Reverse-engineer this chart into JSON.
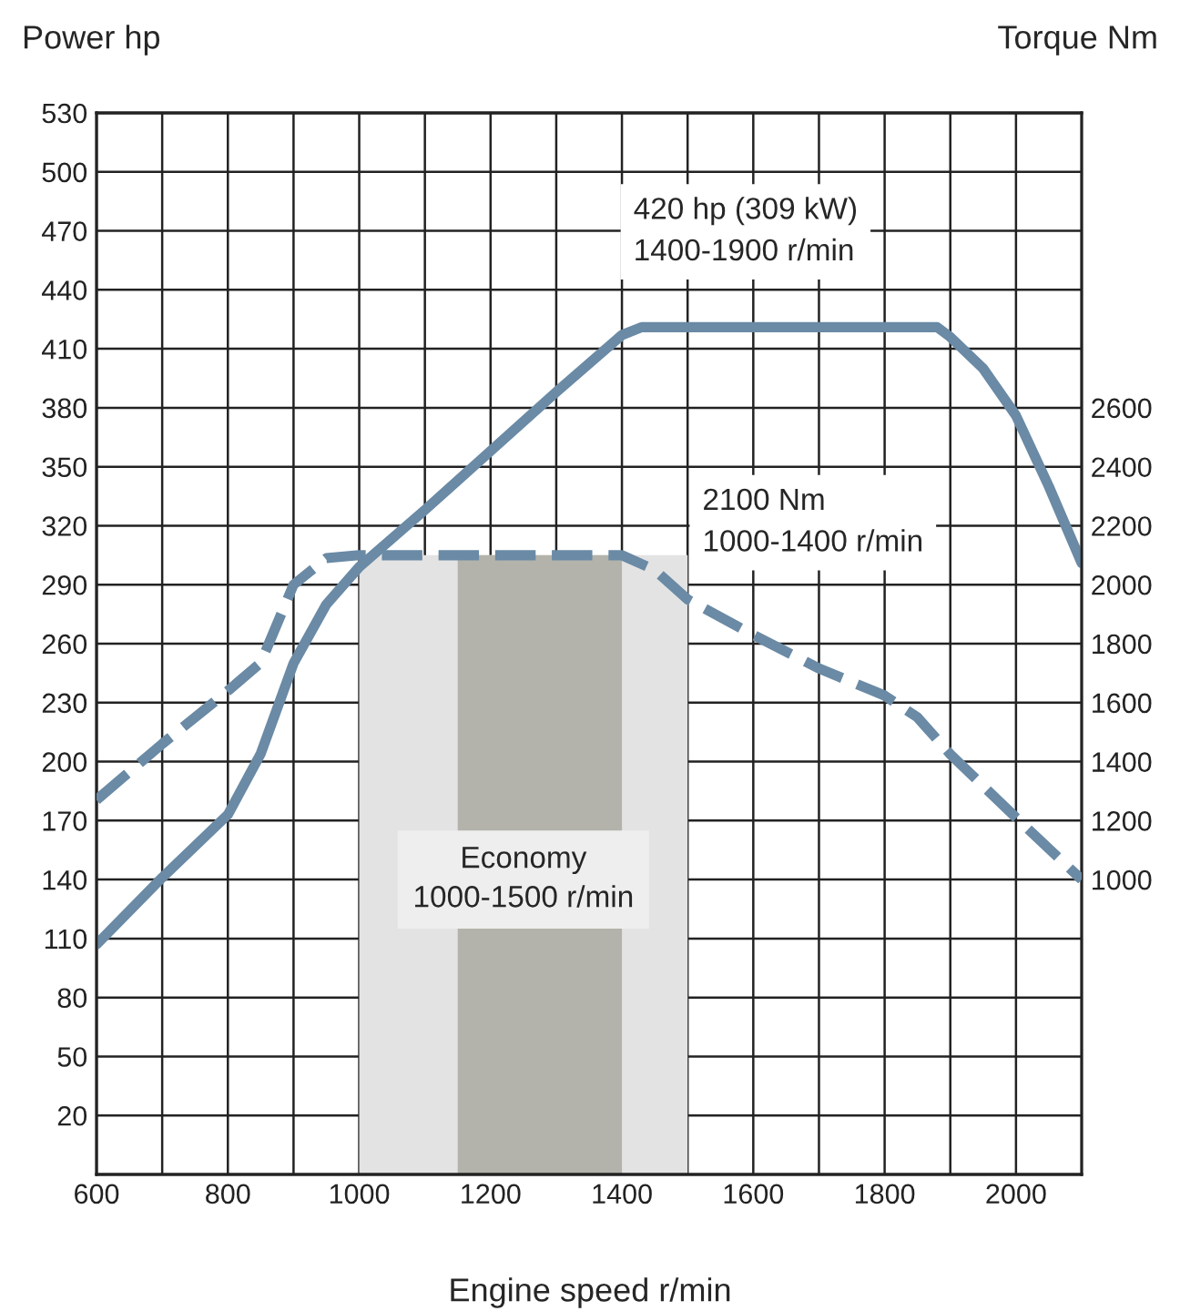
{
  "chart_data": {
    "type": "line",
    "xlabel": "Engine speed r/min",
    "ylabel": "Power hp",
    "y2label": "Torque Nm",
    "xlim": [
      600,
      2100
    ],
    "xticks": [
      600,
      {
        "value": 700,
        "label": null
      },
      800,
      {
        "value": 900,
        "label": null
      },
      1000,
      {
        "value": 1100,
        "label": null
      },
      1200,
      {
        "value": 1300,
        "label": null
      },
      1400,
      {
        "value": 1500,
        "label": null
      },
      1600,
      {
        "value": 1700,
        "label": null
      },
      1800,
      {
        "value": 1900,
        "label": null
      },
      2000
    ],
    "ylim": [
      -10,
      530
    ],
    "yticks": [
      20,
      50,
      80,
      110,
      140,
      170,
      200,
      230,
      260,
      290,
      320,
      350,
      380,
      410,
      440,
      470,
      500,
      530
    ],
    "y2lim": [
      0,
      3600
    ],
    "y2ticks": [
      1000,
      1200,
      1400,
      1600,
      1800,
      2000,
      2200,
      2400,
      2600
    ],
    "grid": true,
    "legend": false,
    "series": [
      {
        "color": "#6a8aa5",
        "line_style": "solid",
        "x": [
          600,
          700,
          800,
          850,
          900,
          950,
          1000,
          1100,
          1200,
          1300,
          1400,
          1430,
          1500,
          1600,
          1700,
          1800,
          1880,
          1900,
          1950,
          2000,
          2050,
          2100
        ],
        "values": [
          107,
          141,
          173,
          204,
          250,
          280,
          299,
          328,
          358,
          388,
          417,
          421,
          421,
          421,
          421,
          421,
          421,
          416,
          400,
          376,
          340,
          301
        ]
      },
      {
        "color": "#6a8aa5",
        "line_style": "dashed",
        "axis": "y2",
        "x": [
          600,
          700,
          800,
          850,
          900,
          950,
          1000,
          1100,
          1200,
          1300,
          1400,
          1450,
          1500,
          1600,
          1700,
          1800,
          1850,
          1900,
          2000,
          2100
        ],
        "values": [
          1270,
          1460,
          1640,
          1735,
          2000,
          2090,
          2100,
          2100,
          2100,
          2100,
          2100,
          2050,
          1950,
          1830,
          1716,
          1624,
          1550,
          1425,
          1210,
          1000
        ]
      }
    ],
    "bands": [
      {
        "axis": "x",
        "from": 1000,
        "to": 1500,
        "label": "Economy\n1000-1500 r/min",
        "color": "#e3e3e3"
      },
      {
        "axis": "x",
        "from": 1150,
        "to": 1400,
        "color": "#b3b3ab"
      }
    ],
    "annotations": [
      "420 hp (309 kW)\n1400-1900 r/min",
      "2100 Nm\n1000-1400 r/min"
    ]
  }
}
